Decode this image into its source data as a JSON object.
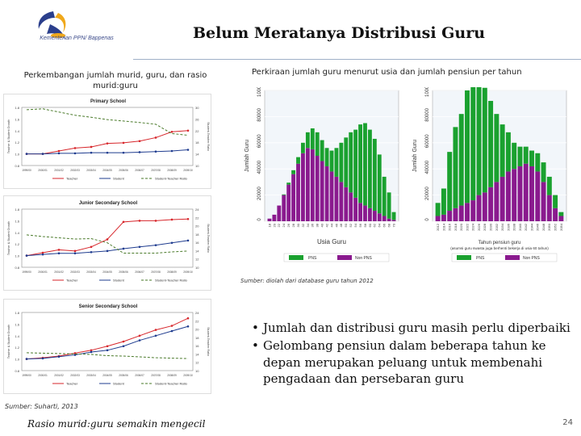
{
  "header": {
    "title": "Belum Meratanya Distribusi Guru",
    "logo_text": "Kementerian PPN/ Bappenas"
  },
  "left_section": {
    "subtitle": "Perkembangan jumlah murid, guru, dan rasio murid:guru",
    "source": "Sumber: Suharti, 2013",
    "caption": "Rasio murid:guru semakin mengecil"
  },
  "right_section": {
    "subtitle": "Perkiraan jumlah guru menurut usia dan jumlah pensiun per tahun",
    "source": "Sumber: diolah dari database guru tahun 2012"
  },
  "bullets": [
    "Jumlah dan distribusi guru masih perlu diperbaiki",
    "Gelombang pensiun dalam beberapa tahun ke depan merupakan peluang untuk membenahi pengadaan dan persebaran guru"
  ],
  "page_number": "24",
  "colors": {
    "teacher": "#d7262b",
    "student": "#1f3c8f",
    "ratio": "#4a7a2a",
    "pns": "#1aa12f",
    "non_pns": "#8a1a8e",
    "rule": "#9fb0c8"
  },
  "chart_data": [
    {
      "type": "line",
      "title": "Primary School",
      "ylabel": "Teacher & Student Growth",
      "y2label": "Student-Teacher Ratio",
      "categories": [
        "1999/00",
        "2000/01",
        "2001/02",
        "2002/03",
        "2003/04",
        "2004/05",
        "2005/06",
        "2006/07",
        "2007/08",
        "2008/09",
        "2009/10"
      ],
      "ylim": [
        0.8,
        1.8
      ],
      "y2lim": [
        10,
        30
      ],
      "yticks": [
        "0.8",
        "1.0",
        "1.2",
        "1.4",
        "1.6",
        "1.8"
      ],
      "y2ticks": [
        "10",
        "14",
        "18",
        "22",
        "26",
        "30"
      ],
      "series": [
        {
          "name": "Teacher",
          "axis": "left",
          "values": [
            1.0,
            1.0,
            1.05,
            1.1,
            1.12,
            1.18,
            1.19,
            1.22,
            1.28,
            1.38,
            1.4
          ]
        },
        {
          "name": "Student",
          "axis": "left",
          "values": [
            1.0,
            1.0,
            1.01,
            1.01,
            1.02,
            1.02,
            1.02,
            1.03,
            1.04,
            1.05,
            1.07
          ]
        },
        {
          "name": "Student-Teacher Ratio",
          "axis": "right",
          "values": [
            29.2,
            29.5,
            28.4,
            27.3,
            26.6,
            25.8,
            25.3,
            24.8,
            24.2,
            21.0,
            20.4
          ]
        }
      ],
      "legend": "bottom"
    },
    {
      "type": "line",
      "title": "Junior Secondary School",
      "ylabel": "Teacher & Student Growth",
      "y2label": "Student-Teacher Ratio",
      "categories": [
        "1999/00",
        "2000/01",
        "2001/02",
        "2002/03",
        "2003/04",
        "2004/05",
        "2005/06",
        "2006/07",
        "2007/08",
        "2008/09",
        "2009/10"
      ],
      "ylim": [
        0.8,
        1.8
      ],
      "y2lim": [
        10,
        24
      ],
      "yticks": [
        "0.8",
        "1.0",
        "1.2",
        "1.4",
        "1.6",
        "1.8"
      ],
      "y2ticks": [
        "10",
        "12",
        "14",
        "16",
        "18",
        "20",
        "22",
        "24"
      ],
      "series": [
        {
          "name": "Teacher",
          "axis": "left",
          "values": [
            1.0,
            1.05,
            1.1,
            1.08,
            1.15,
            1.28,
            1.58,
            1.6,
            1.6,
            1.62,
            1.63
          ]
        },
        {
          "name": "Student",
          "axis": "left",
          "values": [
            1.0,
            1.02,
            1.04,
            1.04,
            1.06,
            1.08,
            1.12,
            1.15,
            1.18,
            1.22,
            1.26
          ]
        },
        {
          "name": "Student-Teacher Ratio",
          "axis": "right",
          "values": [
            17.8,
            17.4,
            17.1,
            16.8,
            16.9,
            15.9,
            13.4,
            13.4,
            13.4,
            13.7,
            13.9
          ]
        }
      ],
      "legend": "bottom"
    },
    {
      "type": "line",
      "title": "Senior Secondary School",
      "ylabel": "Teacher & Student Growth",
      "y2label": "Student-Teacher Ratio",
      "categories": [
        "1999/00",
        "2000/01",
        "2001/02",
        "2002/03",
        "2003/04",
        "2004/05",
        "2005/06",
        "2006/07",
        "2007/08",
        "2008/09",
        "2009/10"
      ],
      "ylim": [
        0.8,
        1.8
      ],
      "y2lim": [
        10,
        24
      ],
      "yticks": [
        "0.8",
        "1.0",
        "1.2",
        "1.4",
        "1.6",
        "1.8"
      ],
      "y2ticks": [
        "10",
        "12",
        "14",
        "16",
        "18",
        "20",
        "22",
        "24"
      ],
      "series": [
        {
          "name": "Teacher",
          "axis": "left",
          "values": [
            1.0,
            1.02,
            1.05,
            1.1,
            1.15,
            1.22,
            1.3,
            1.4,
            1.5,
            1.57,
            1.7
          ]
        },
        {
          "name": "Student",
          "axis": "left",
          "values": [
            1.0,
            1.01,
            1.04,
            1.07,
            1.12,
            1.15,
            1.22,
            1.32,
            1.4,
            1.48,
            1.56
          ]
        },
        {
          "name": "Student-Teacher Ratio",
          "axis": "right",
          "values": [
            14.3,
            14.2,
            14.1,
            14.0,
            13.9,
            13.6,
            13.5,
            13.3,
            13.1,
            13.0,
            12.9
          ]
        }
      ],
      "legend": "bottom"
    },
    {
      "type": "bar",
      "stacked": true,
      "xlabel": "Usia Guru",
      "ylabel": "Jumlah Guru",
      "ylim": [
        0,
        100000
      ],
      "yticks": [
        "0",
        "20000",
        "40000",
        "60000",
        "80000",
        "100000"
      ],
      "categories": [
        "18",
        "20",
        "22",
        "24",
        "26",
        "28",
        "30",
        "32",
        "34",
        "36",
        "38",
        "40",
        "42",
        "44",
        "46",
        "48",
        "50",
        "52",
        "54",
        "56",
        "58",
        "60",
        "62",
        "64",
        "66",
        "68",
        "70"
      ],
      "series": [
        {
          "name": "PNS",
          "values": [
            0,
            0,
            0,
            500,
            1500,
            3000,
            5000,
            8000,
            12000,
            16000,
            18000,
            16000,
            14000,
            16000,
            22000,
            30000,
            38000,
            46000,
            52000,
            60000,
            63000,
            60000,
            55000,
            45000,
            30000,
            20000,
            6000
          ]
        },
        {
          "name": "Non PNS",
          "values": [
            2000,
            5000,
            12000,
            20000,
            28000,
            36000,
            44000,
            52000,
            56000,
            55000,
            50000,
            46000,
            42000,
            38000,
            34000,
            30000,
            26000,
            22000,
            18000,
            14000,
            12000,
            10000,
            8000,
            6000,
            4000,
            2000,
            1000
          ]
        }
      ],
      "legend": "bottom"
    },
    {
      "type": "bar",
      "stacked": true,
      "xlabel": "Tahun pensiun guru",
      "xlabel2": "(asumsi guru swasta juga berhenti bekerja di usia 60 tahun)",
      "ylabel": "Jumlah Guru",
      "ylim": [
        0,
        100000
      ],
      "yticks": [
        "0",
        "20000",
        "40000",
        "60000",
        "80000",
        "100000"
      ],
      "categories": [
        "2012",
        "2014",
        "2016",
        "2018",
        "2020",
        "2022",
        "2024",
        "2026",
        "2028",
        "2030",
        "2032",
        "2034",
        "2036",
        "2038",
        "2040",
        "2042",
        "2044",
        "2046",
        "2048",
        "2050",
        "2052",
        "2054"
      ],
      "series": [
        {
          "name": "PNS",
          "values": [
            10000,
            20000,
            45000,
            62000,
            70000,
            86000,
            92000,
            88000,
            80000,
            66000,
            52000,
            40000,
            30000,
            20000,
            15000,
            13000,
            12000,
            14000,
            15000,
            14000,
            10000,
            3000
          ]
        },
        {
          "name": "Non PNS",
          "values": [
            4000,
            5000,
            8000,
            10000,
            12000,
            14000,
            16000,
            20000,
            22000,
            26000,
            30000,
            34000,
            38000,
            40000,
            42000,
            44000,
            42000,
            38000,
            30000,
            20000,
            10000,
            4000
          ]
        }
      ],
      "legend": "bottom"
    }
  ]
}
